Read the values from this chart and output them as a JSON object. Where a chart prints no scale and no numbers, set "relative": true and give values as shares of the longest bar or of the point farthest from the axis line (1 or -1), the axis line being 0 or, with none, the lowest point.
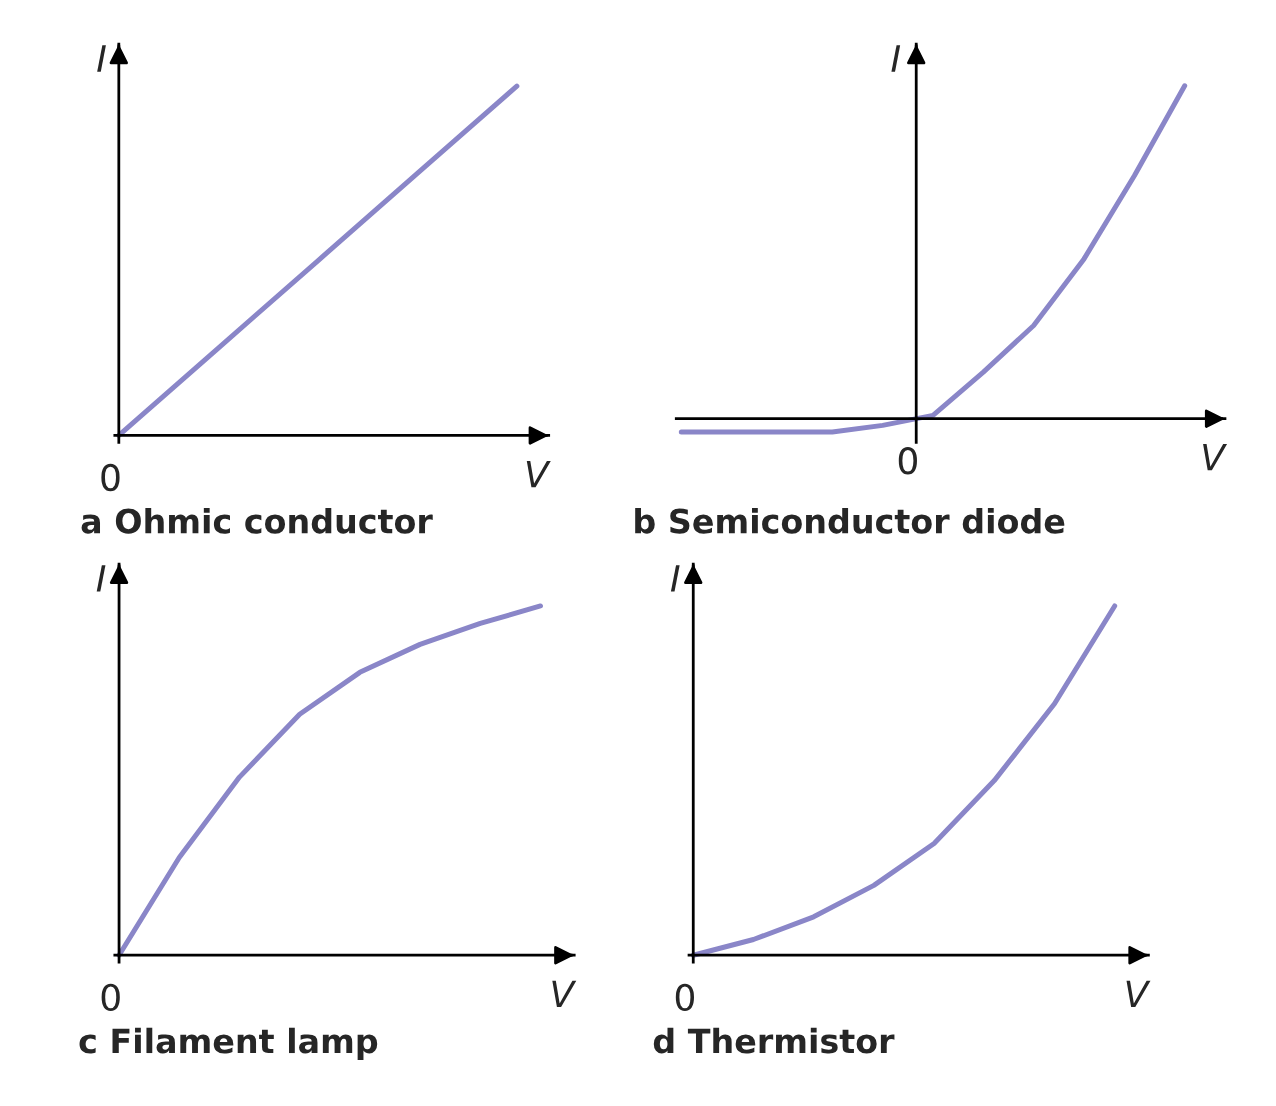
{
  "chart_data": [
    {
      "type": "line",
      "relative": true,
      "title": "a Ohmic conductor",
      "xlabel": "V",
      "ylabel": "I",
      "annotations": [
        "0"
      ],
      "categories": [
        null,
        null,
        null,
        null,
        null
      ],
      "series": [
        {
          "color": "#8a86c8",
          "values": [
            0,
            0.25,
            0.5,
            0.75,
            1
          ]
        }
      ]
    },
    {
      "type": "line",
      "relative": true,
      "title": "b Semiconductor diode",
      "xlabel": "V",
      "ylabel": "I",
      "annotations": [
        "0"
      ],
      "categories": [
        null,
        null,
        null,
        null,
        null,
        null,
        null,
        null,
        null,
        null,
        null
      ],
      "series": [
        {
          "color": "#8a86c8",
          "values": [
            -0.04,
            -0.04,
            -0.04,
            -0.04,
            -0.02,
            0.01,
            0.14,
            0.28,
            0.48,
            0.73,
            1
          ]
        }
      ]
    },
    {
      "type": "line",
      "relative": true,
      "title": "c Filament lamp",
      "xlabel": "V",
      "ylabel": "I",
      "annotations": [
        "0"
      ],
      "categories": [
        null,
        null,
        null,
        null,
        null,
        null,
        null,
        null
      ],
      "series": [
        {
          "color": "#8a86c8",
          "values": [
            0,
            0.28,
            0.51,
            0.69,
            0.81,
            0.89,
            0.95,
            1
          ]
        }
      ]
    },
    {
      "type": "line",
      "relative": true,
      "title": "d Thermistor",
      "xlabel": "V",
      "ylabel": "I",
      "annotations": [
        "0"
      ],
      "categories": [
        null,
        null,
        null,
        null,
        null,
        null,
        null,
        null
      ],
      "series": [
        {
          "color": "#8a86c8",
          "values": [
            0,
            0.045,
            0.11,
            0.2,
            0.32,
            0.5,
            0.72,
            1
          ]
        }
      ]
    }
  ]
}
